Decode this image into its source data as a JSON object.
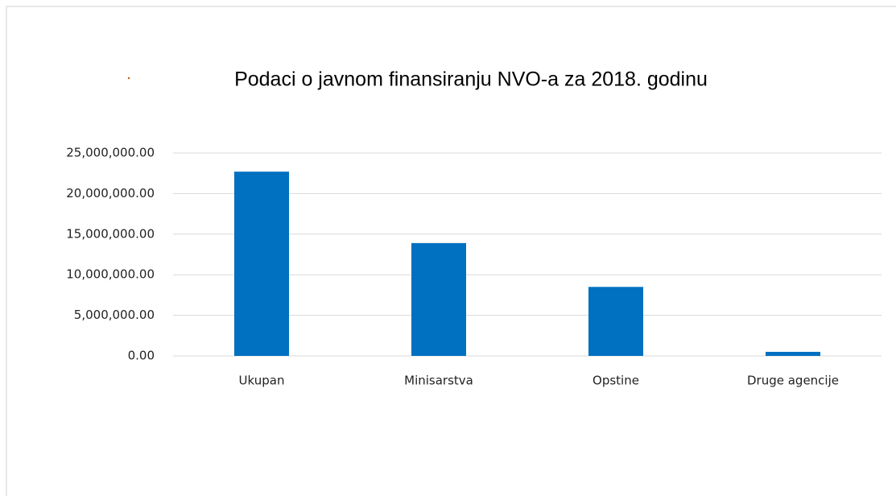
{
  "chart_data": {
    "type": "bar",
    "title": "Podaci o javnom finansiranju NVO-a za 2018. godinu",
    "categories": [
      "Ukupan",
      "Minisarstva",
      "Opstine",
      "Druge agencije"
    ],
    "values": [
      22700000,
      13900000,
      8500000,
      500000
    ],
    "color": "#0070c0",
    "ylim": [
      0,
      25000000
    ],
    "yticks": [
      {
        "value": 0,
        "label": "0.00"
      },
      {
        "value": 5000000,
        "label": "5,000,000.00"
      },
      {
        "value": 10000000,
        "label": "10,000,000.00"
      },
      {
        "value": 15000000,
        "label": "15,000,000.00"
      },
      {
        "value": 20000000,
        "label": "20,000,000.00"
      },
      {
        "value": 25000000,
        "label": "25,000,000.00"
      }
    ],
    "grid": true
  }
}
